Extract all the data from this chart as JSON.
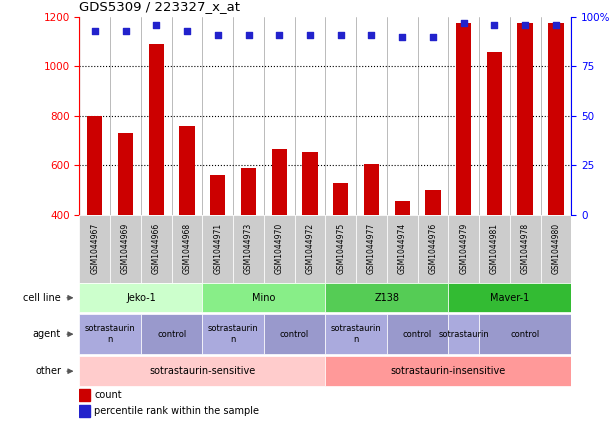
{
  "title": "GDS5309 / 223327_x_at",
  "samples": [
    "GSM1044967",
    "GSM1044969",
    "GSM1044966",
    "GSM1044968",
    "GSM1044971",
    "GSM1044973",
    "GSM1044970",
    "GSM1044972",
    "GSM1044975",
    "GSM1044977",
    "GSM1044974",
    "GSM1044976",
    "GSM1044979",
    "GSM1044981",
    "GSM1044978",
    "GSM1044980"
  ],
  "counts": [
    800,
    730,
    1090,
    760,
    560,
    590,
    665,
    655,
    530,
    605,
    455,
    500,
    1175,
    1060,
    1175,
    1175
  ],
  "percentiles": [
    93,
    93,
    96,
    93,
    91,
    91,
    91,
    91,
    91,
    91,
    90,
    90,
    97,
    96,
    96,
    96
  ],
  "ylim_left": [
    400,
    1200
  ],
  "ylim_right": [
    0,
    100
  ],
  "yticks_left": [
    400,
    600,
    800,
    1000,
    1200
  ],
  "yticks_right": [
    0,
    25,
    50,
    75,
    100
  ],
  "bar_color": "#cc0000",
  "dot_color": "#2222cc",
  "cell_lines": [
    {
      "label": "Jeko-1",
      "start": 0,
      "end": 4,
      "color": "#ccffcc"
    },
    {
      "label": "Mino",
      "start": 4,
      "end": 8,
      "color": "#88ee88"
    },
    {
      "label": "Z138",
      "start": 8,
      "end": 12,
      "color": "#55cc55"
    },
    {
      "label": "Maver-1",
      "start": 12,
      "end": 16,
      "color": "#33bb33"
    }
  ],
  "agents": [
    {
      "label": "sotrastaurin\nn",
      "start": 0,
      "end": 2,
      "color": "#aaaadd"
    },
    {
      "label": "control",
      "start": 2,
      "end": 4,
      "color": "#9999cc"
    },
    {
      "label": "sotrastaurin\nn",
      "start": 4,
      "end": 6,
      "color": "#aaaadd"
    },
    {
      "label": "control",
      "start": 6,
      "end": 8,
      "color": "#9999cc"
    },
    {
      "label": "sotrastaurin\nn",
      "start": 8,
      "end": 10,
      "color": "#aaaadd"
    },
    {
      "label": "control",
      "start": 10,
      "end": 12,
      "color": "#9999cc"
    },
    {
      "label": "sotrastaurin",
      "start": 12,
      "end": 13,
      "color": "#aaaadd"
    },
    {
      "label": "control",
      "start": 13,
      "end": 16,
      "color": "#9999cc"
    }
  ],
  "others": [
    {
      "label": "sotrastaurin-sensitive",
      "start": 0,
      "end": 8,
      "color": "#ffcccc"
    },
    {
      "label": "sotrastaurin-insensitive",
      "start": 8,
      "end": 16,
      "color": "#ff9999"
    }
  ],
  "row_labels": [
    "cell line",
    "agent",
    "other"
  ],
  "legend_count": "count",
  "legend_pct": "percentile rank within the sample",
  "sample_box_color": "#cccccc"
}
